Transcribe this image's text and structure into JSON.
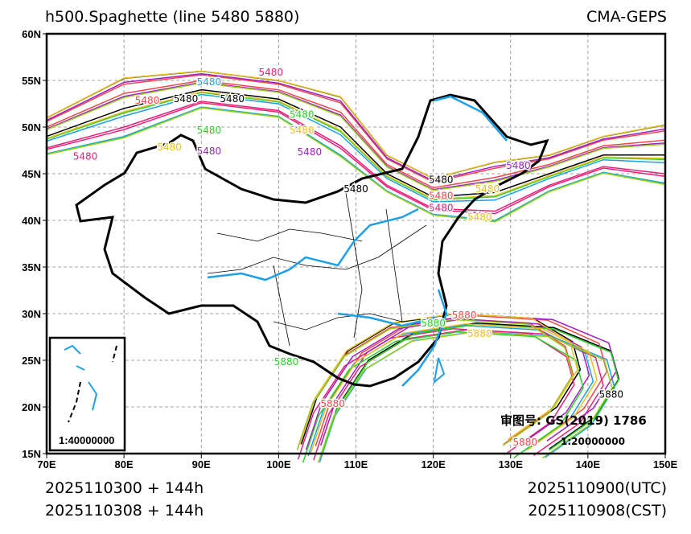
{
  "title": "h500.Spaghette (line 5480 5880)",
  "model": "CMA-GEPS",
  "footer": {
    "init_utc": "2025110300 + 144h",
    "init_cst": "2025110308 + 144h",
    "valid_utc": "2025110900(UTC)",
    "valid_cst": "2025110908(CST)"
  },
  "map_note": {
    "approval": "审图号: GS(2019) 1786",
    "scale": "1:20000000",
    "inset_scale": "1:40000000"
  },
  "axes": {
    "lon_ticks": [
      "70E",
      "80E",
      "90E",
      "100E",
      "110E",
      "120E",
      "130E",
      "140E",
      "150E"
    ],
    "lat_ticks": [
      "60N",
      "55N",
      "50N",
      "45N",
      "40N",
      "35N",
      "30N",
      "25N",
      "20N",
      "15N"
    ]
  },
  "chart_data": {
    "type": "line",
    "extent": {
      "lon": [
        70,
        150
      ],
      "lat": [
        15,
        60
      ]
    },
    "contour_levels": [
      "5480",
      "5880"
    ],
    "member_colors": [
      "#000000",
      "#1ea0e8",
      "#f04848",
      "#e8207a",
      "#a020c0",
      "#28d028",
      "#e8c020",
      "#98d020"
    ],
    "labels": [
      {
        "text": "5480",
        "lon": 91,
        "lat": 54.5,
        "color": "#1ea0e8"
      },
      {
        "text": "5480",
        "lon": 88,
        "lat": 53.8,
        "color": "#000000"
      },
      {
        "text": "5480",
        "lon": 94,
        "lat": 53.8,
        "color": "#000000"
      },
      {
        "text": "5480",
        "lon": 99,
        "lat": 55.5,
        "color": "#e8207a"
      },
      {
        "text": "5480",
        "lon": 83,
        "lat": 52.5,
        "color": "#f04848"
      },
      {
        "text": "5480",
        "lon": 103,
        "lat": 51,
        "color": "#28d028"
      },
      {
        "text": "5480",
        "lon": 91,
        "lat": 49.3,
        "color": "#28d028"
      },
      {
        "text": "5480",
        "lon": 91,
        "lat": 48.2,
        "color": "#a020c0"
      },
      {
        "text": "5480",
        "lon": 89,
        "lat": 47.5,
        "color": "#e8c020"
      },
      {
        "text": "5480",
        "lon": 103,
        "lat": 49.3,
        "color": "#e8c020"
      },
      {
        "text": "5480",
        "lon": 104,
        "lat": 47,
        "color": "#a020c0"
      },
      {
        "text": "5480",
        "lon": 75,
        "lat": 46.5,
        "color": "#e8207a"
      },
      {
        "text": "5480",
        "lon": 110,
        "lat": 43,
        "color": "#000000"
      },
      {
        "text": "5480",
        "lon": 121,
        "lat": 44,
        "color": "#000000"
      },
      {
        "text": "5480",
        "lon": 121,
        "lat": 42.3,
        "color": "#f04848"
      },
      {
        "text": "5480",
        "lon": 121,
        "lat": 41,
        "color": "#e8207a"
      },
      {
        "text": "5480",
        "lon": 127,
        "lat": 43,
        "color": "#e8c020"
      },
      {
        "text": "5480",
        "lon": 126,
        "lat": 40,
        "color": "#e8c020"
      },
      {
        "text": "5480",
        "lon": 131,
        "lat": 45.5,
        "color": "#a020c0"
      },
      {
        "text": "5880",
        "lon": 124,
        "lat": 29.5,
        "color": "#f04848"
      },
      {
        "text": "5880",
        "lon": 120,
        "lat": 28.6,
        "color": "#28d028"
      },
      {
        "text": "5880",
        "lon": 126,
        "lat": 28.6,
        "color": "#e8c020"
      },
      {
        "text": "5880",
        "lon": 101,
        "lat": 24.5,
        "color": "#28d028"
      },
      {
        "text": "5880",
        "lon": 107,
        "lat": 20,
        "color": "#f04848"
      },
      {
        "text": "5880",
        "lon": 143,
        "lat": 21,
        "color": "#000000"
      },
      {
        "text": "5880",
        "lon": 135,
        "lat": 17,
        "color": "#f04848"
      }
    ]
  }
}
